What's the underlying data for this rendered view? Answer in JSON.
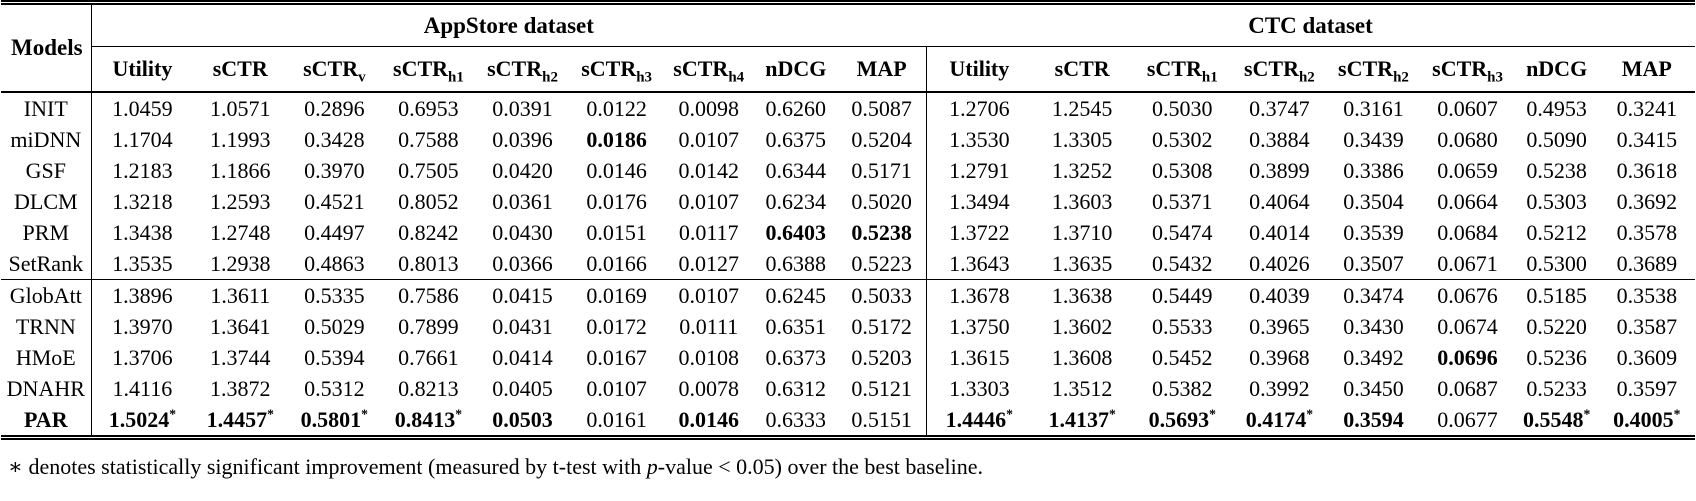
{
  "table": {
    "models_header": "Models",
    "groups": [
      {
        "label": "AppStore dataset",
        "columns": [
          {
            "label": "Utility",
            "sub": ""
          },
          {
            "label": "sCTR",
            "sub": ""
          },
          {
            "label": "sCTR",
            "sub": "v"
          },
          {
            "label": "sCTR",
            "sub": "h1"
          },
          {
            "label": "sCTR",
            "sub": "h2"
          },
          {
            "label": "sCTR",
            "sub": "h3"
          },
          {
            "label": "sCTR",
            "sub": "h4"
          },
          {
            "label": "nDCG",
            "sub": ""
          },
          {
            "label": "MAP",
            "sub": ""
          }
        ]
      },
      {
        "label": "CTC dataset",
        "columns": [
          {
            "label": "Utility",
            "sub": ""
          },
          {
            "label": "sCTR",
            "sub": ""
          },
          {
            "label": "sCTR",
            "sub": "h1"
          },
          {
            "label": "sCTR",
            "sub": "h2"
          },
          {
            "label": "sCTR",
            "sub": "h2"
          },
          {
            "label": "sCTR",
            "sub": "h3"
          },
          {
            "label": "nDCG",
            "sub": ""
          },
          {
            "label": "MAP",
            "sub": ""
          }
        ]
      }
    ],
    "row_groups": [
      {
        "rows": [
          {
            "model": "INIT",
            "bold_model": false,
            "appstore": [
              "1.0459",
              "1.0571",
              "0.2896",
              "0.6953",
              "0.0391",
              "0.0122",
              "0.0098",
              "0.6260",
              "0.5087"
            ],
            "ctc": [
              "1.2706",
              "1.2545",
              "0.5030",
              "0.3747",
              "0.3161",
              "0.0607",
              "0.4953",
              "0.3241"
            ]
          },
          {
            "model": "miDNN",
            "bold_model": false,
            "appstore": [
              "1.1704",
              "1.1993",
              "0.3428",
              "0.7588",
              "0.0396",
              {
                "v": "0.0186",
                "b": true
              },
              "0.0107",
              "0.6375",
              "0.5204"
            ],
            "ctc": [
              "1.3530",
              "1.3305",
              "0.5302",
              "0.3884",
              "0.3439",
              "0.0680",
              "0.5090",
              "0.3415"
            ]
          },
          {
            "model": "GSF",
            "bold_model": false,
            "appstore": [
              "1.2183",
              "1.1866",
              "0.3970",
              "0.7505",
              "0.0420",
              "0.0146",
              "0.0142",
              "0.6344",
              "0.5171"
            ],
            "ctc": [
              "1.2791",
              "1.3252",
              "0.5308",
              "0.3899",
              "0.3386",
              "0.0659",
              "0.5238",
              "0.3618"
            ]
          },
          {
            "model": "DLCM",
            "bold_model": false,
            "appstore": [
              "1.3218",
              "1.2593",
              "0.4521",
              "0.8052",
              "0.0361",
              "0.0176",
              "0.0107",
              "0.6234",
              "0.5020"
            ],
            "ctc": [
              "1.3494",
              "1.3603",
              "0.5371",
              "0.4064",
              "0.3504",
              "0.0664",
              "0.5303",
              "0.3692"
            ]
          },
          {
            "model": "PRM",
            "bold_model": false,
            "appstore": [
              "1.3438",
              "1.2748",
              "0.4497",
              "0.8242",
              "0.0430",
              "0.0151",
              "0.0117",
              {
                "v": "0.6403",
                "b": true
              },
              {
                "v": "0.5238",
                "b": true
              }
            ],
            "ctc": [
              "1.3722",
              "1.3710",
              "0.5474",
              "0.4014",
              "0.3539",
              "0.0684",
              "0.5212",
              "0.3578"
            ]
          },
          {
            "model": "SetRank",
            "bold_model": false,
            "appstore": [
              "1.3535",
              "1.2938",
              "0.4863",
              "0.8013",
              "0.0366",
              "0.0166",
              "0.0127",
              "0.6388",
              "0.5223"
            ],
            "ctc": [
              "1.3643",
              "1.3635",
              "0.5432",
              "0.4026",
              "0.3507",
              "0.0671",
              "0.5300",
              "0.3689"
            ]
          }
        ]
      },
      {
        "rows": [
          {
            "model": "GlobAtt",
            "bold_model": false,
            "appstore": [
              "1.3896",
              "1.3611",
              "0.5335",
              "0.7586",
              "0.0415",
              "0.0169",
              "0.0107",
              "0.6245",
              "0.5033"
            ],
            "ctc": [
              "1.3678",
              "1.3638",
              "0.5449",
              "0.4039",
              "0.3474",
              "0.0676",
              "0.5185",
              "0.3538"
            ]
          },
          {
            "model": "TRNN",
            "bold_model": false,
            "appstore": [
              "1.3970",
              "1.3641",
              "0.5029",
              "0.7899",
              "0.0431",
              "0.0172",
              "0.0111",
              "0.6351",
              "0.5172"
            ],
            "ctc": [
              "1.3750",
              "1.3602",
              "0.5533",
              "0.3965",
              "0.3430",
              "0.0674",
              "0.5220",
              "0.3587"
            ]
          },
          {
            "model": "HMoE",
            "bold_model": false,
            "appstore": [
              "1.3706",
              "1.3744",
              "0.5394",
              "0.7661",
              "0.0414",
              "0.0167",
              "0.0108",
              "0.6373",
              "0.5203"
            ],
            "ctc": [
              "1.3615",
              "1.3608",
              "0.5452",
              "0.3968",
              "0.3492",
              {
                "v": "0.0696",
                "b": true
              },
              "0.5236",
              "0.3609"
            ]
          },
          {
            "model": "DNAHR",
            "bold_model": false,
            "appstore": [
              "1.4116",
              "1.3872",
              "0.5312",
              "0.8213",
              "0.0405",
              "0.0107",
              "0.0078",
              "0.6312",
              "0.5121"
            ],
            "ctc": [
              "1.3303",
              "1.3512",
              "0.5382",
              "0.3992",
              "0.3450",
              "0.0687",
              "0.5233",
              "0.3597"
            ]
          },
          {
            "model": "PAR",
            "bold_model": true,
            "appstore": [
              {
                "v": "1.5024",
                "b": true,
                "s": true
              },
              {
                "v": "1.4457",
                "b": true,
                "s": true
              },
              {
                "v": "0.5801",
                "b": true,
                "s": true
              },
              {
                "v": "0.8413",
                "b": true,
                "s": true
              },
              {
                "v": "0.0503",
                "b": true
              },
              "0.0161",
              {
                "v": "0.0146",
                "b": true
              },
              "0.6333",
              "0.5151"
            ],
            "ctc": [
              {
                "v": "1.4446",
                "b": true,
                "s": true
              },
              {
                "v": "1.4137",
                "b": true,
                "s": true
              },
              {
                "v": "0.5693",
                "b": true,
                "s": true
              },
              {
                "v": "0.4174",
                "b": true,
                "s": true
              },
              {
                "v": "0.3594",
                "b": true
              },
              "0.0677",
              {
                "v": "0.5548",
                "b": true,
                "s": true
              },
              {
                "v": "0.4005",
                "b": true,
                "s": true
              }
            ]
          }
        ]
      }
    ],
    "footnote": {
      "prefix": "∗ denotes statistically significant improvement (measured by t-test with ",
      "p": "p",
      "suffix": "-value < 0.05) over the best baseline."
    }
  }
}
